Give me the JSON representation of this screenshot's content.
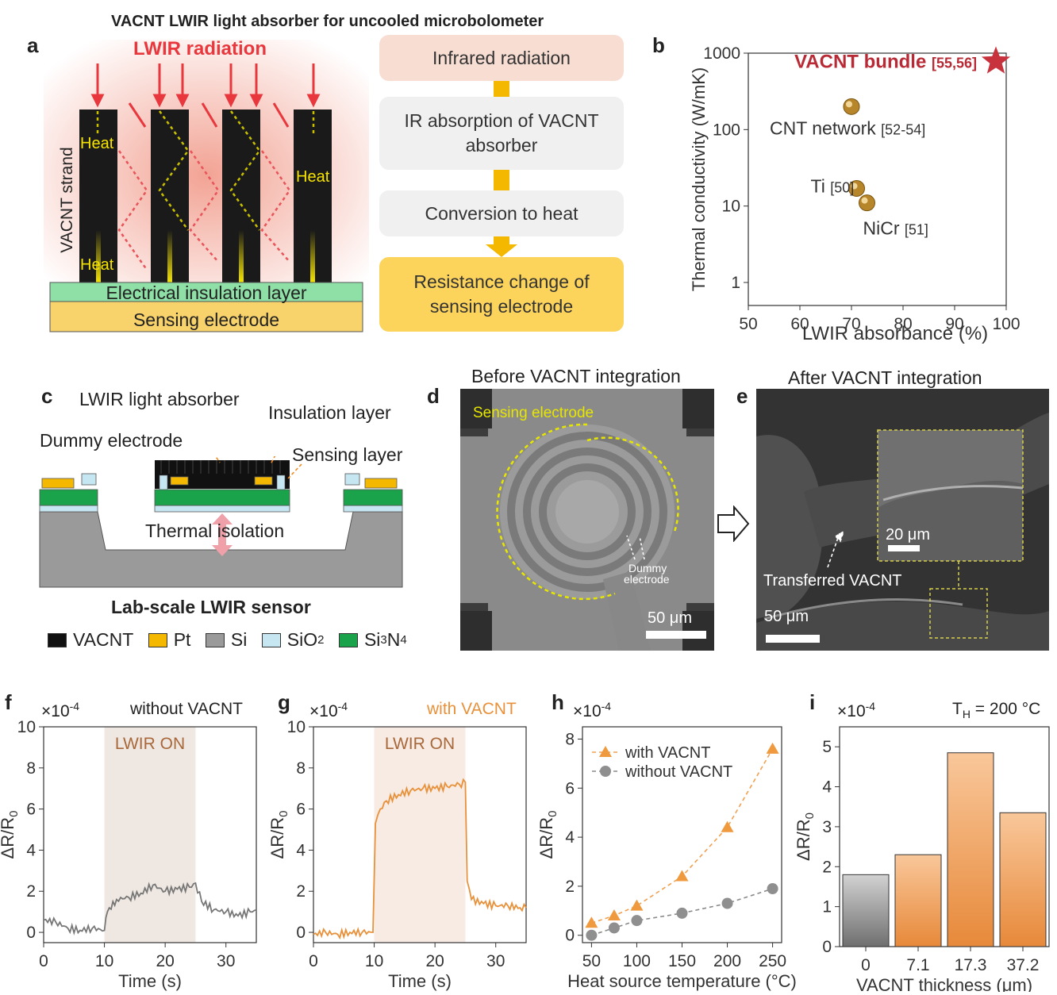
{
  "title": "VACNT LWIR light absorber for uncooled microbolometer",
  "panel_a": {
    "letter": "a",
    "radiation_label": "LWIR radiation",
    "strand_label": "VACNT strand",
    "heat_label": "Heat",
    "insulation_label": "Electrical insulation layer",
    "electrode_label": "Sensing electrode",
    "flow": [
      "Infrared radiation",
      "IR absorption of VACNT absorber",
      "Conversion to heat",
      "Resistance change of sensing electrode"
    ]
  },
  "panel_b": {
    "letter": "b",
    "xlabel": "LWIR absorbance (%)",
    "ylabel": "Thermal conductivity (W/mK)",
    "yticks": [
      "1000",
      "100",
      "10",
      "1"
    ],
    "xticks": [
      "50",
      "60",
      "70",
      "80",
      "90",
      "100"
    ],
    "highlight": "VACNT bundle",
    "highlight_ref": "[55,56]",
    "points": [
      {
        "name": "CNT network",
        "ref": "[52-54]"
      },
      {
        "name": "Ti",
        "ref": "[50]"
      },
      {
        "name": "NiCr",
        "ref": "[51]"
      }
    ]
  },
  "panel_c": {
    "letter": "c",
    "labels": {
      "absorber": "LWIR light absorber",
      "insulation": "Insulation layer",
      "dummy": "Dummy electrode",
      "sensing": "Sensing layer",
      "isolation": "Thermal isolation"
    },
    "caption": "Lab-scale LWIR sensor",
    "legend": [
      "VACNT",
      "Pt",
      "Si",
      "SiO",
      "Si",
      "N"
    ],
    "legend_colors": {
      "VACNT": "#111111",
      "Pt": "#f5b800",
      "Si": "#9a9a9a",
      "SiO2": "#c6e6f2",
      "Si3N4": "#1aa34a"
    }
  },
  "panel_d": {
    "letter": "d",
    "title": "Before VACNT integration",
    "sensing_label": "Sensing electrode",
    "dummy_label_1": "Dummy",
    "dummy_label_2": "electrode",
    "scale": "50 μm"
  },
  "panel_e": {
    "letter": "e",
    "title": "After VACNT integration",
    "transferred_label": "Transferred VACNT",
    "scale_inset": "20 μm",
    "scale": "50 μm"
  },
  "panel_f": {
    "letter": "f",
    "multiplier": "×10",
    "exp": "-4",
    "condition": "without VACNT"
  },
  "panel_g": {
    "letter": "g",
    "multiplier": "×10",
    "exp": "-4",
    "condition": "with VACNT"
  },
  "panel_h": {
    "letter": "h",
    "multiplier": "×10",
    "exp": "-4"
  },
  "panel_i": {
    "letter": "i",
    "multiplier": "×10",
    "exp": "-4",
    "condition_main": "T",
    "condition_sub": "H",
    "condition_rest": " = 200 °C"
  },
  "chart_data": [
    {
      "type": "scatter",
      "panel": "b",
      "xlabel": "LWIR absorbance (%)",
      "ylabel": "Thermal conductivity (W/mK)",
      "yscale": "log",
      "xlim": [
        50,
        100
      ],
      "ylim": [
        0.5,
        1000
      ],
      "series": [
        {
          "name": "VACNT bundle",
          "x": [
            98
          ],
          "y": [
            780
          ]
        },
        {
          "name": "CNT network",
          "x": [
            70
          ],
          "y": [
            200
          ]
        },
        {
          "name": "Ti",
          "x": [
            71
          ],
          "y": [
            17
          ]
        },
        {
          "name": "NiCr",
          "x": [
            73
          ],
          "y": [
            11
          ]
        }
      ]
    },
    {
      "type": "line",
      "panel": "f",
      "xlabel": "Time (s)",
      "ylabel": "ΔR/R0",
      "xlim": [
        0,
        35
      ],
      "ylim": [
        -0.5,
        10
      ],
      "xticks": [
        "0",
        "10",
        "20",
        "30"
      ],
      "yticks": [
        "0",
        "2",
        "4",
        "6",
        "8",
        "10"
      ],
      "shaded_region": [
        10,
        25
      ],
      "annotation": "LWIR ON",
      "series": [
        {
          "x": [
            0,
            2,
            4,
            6,
            8,
            10,
            10.5,
            12,
            14,
            16,
            18,
            20,
            22,
            24,
            25,
            26,
            28,
            30,
            32,
            34,
            35
          ],
          "y": [
            0.6,
            0.5,
            0.2,
            0.1,
            0.2,
            0.1,
            1.0,
            1.6,
            1.7,
            1.9,
            2.3,
            2.0,
            2.1,
            2.2,
            2.4,
            1.5,
            1.1,
            1.0,
            0.8,
            1.0,
            1.1
          ]
        }
      ]
    },
    {
      "type": "line",
      "panel": "g",
      "xlabel": "Time (s)",
      "ylabel": "ΔR/R0",
      "xlim": [
        0,
        35
      ],
      "ylim": [
        -0.5,
        10
      ],
      "xticks": [
        "0",
        "10",
        "20",
        "30"
      ],
      "yticks": [
        "0",
        "2",
        "4",
        "6",
        "8",
        "10"
      ],
      "shaded_region": [
        10,
        25
      ],
      "annotation": "LWIR ON",
      "series": [
        {
          "x": [
            0,
            2,
            4,
            6,
            8,
            9.8,
            10.2,
            11,
            12,
            14,
            16,
            18,
            20,
            22,
            24,
            25,
            25.3,
            26,
            28,
            30,
            32,
            34,
            35
          ],
          "y": [
            -0.1,
            0.0,
            -0.1,
            0.0,
            0.0,
            0.0,
            5.3,
            6.0,
            6.4,
            6.7,
            6.9,
            7.0,
            7.0,
            7.1,
            7.2,
            7.3,
            2.5,
            1.6,
            1.4,
            1.3,
            1.3,
            1.2,
            1.2
          ]
        }
      ]
    },
    {
      "type": "line",
      "panel": "h",
      "xlabel": "Heat source temperature (°C)",
      "ylabel": "ΔR/R0",
      "xlim": [
        40,
        260
      ],
      "ylim": [
        -0.3,
        8.5
      ],
      "xticks": [
        "50",
        "100",
        "150",
        "200",
        "250"
      ],
      "yticks": [
        "0",
        "2",
        "4",
        "6",
        "8"
      ],
      "legend_position": "top-left",
      "series": [
        {
          "name": "with VACNT",
          "x": [
            50,
            75,
            100,
            150,
            200,
            250
          ],
          "y": [
            0.5,
            0.8,
            1.2,
            2.4,
            4.4,
            7.6
          ]
        },
        {
          "name": "without VACNT",
          "x": [
            50,
            75,
            100,
            150,
            200,
            250
          ],
          "y": [
            0.0,
            0.3,
            0.6,
            0.9,
            1.3,
            1.9
          ]
        }
      ]
    },
    {
      "type": "bar",
      "panel": "i",
      "xlabel": "VACNT thickness (μm)",
      "ylabel": "ΔR/R0",
      "ylim": [
        0,
        5.5
      ],
      "yticks": [
        "0",
        "1",
        "2",
        "3",
        "4",
        "5"
      ],
      "categories": [
        "0",
        "7.1",
        "17.3",
        "37.2"
      ],
      "values": [
        1.8,
        2.3,
        4.85,
        3.35
      ]
    }
  ]
}
